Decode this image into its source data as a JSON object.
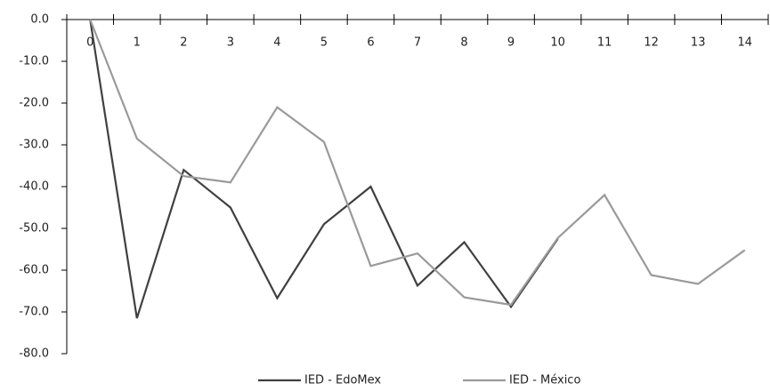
{
  "chart_data": {
    "type": "line",
    "categories": [
      "0",
      "1",
      "2",
      "3",
      "4",
      "5",
      "6",
      "7",
      "8",
      "9",
      "10",
      "11",
      "12",
      "13",
      "14"
    ],
    "series": [
      {
        "name": "IED - EdoMex",
        "color": "#404040",
        "values": [
          0,
          -71.5,
          -36,
          -45,
          -66.7,
          -49,
          -40,
          -63.7,
          -53.3,
          -68.8,
          -52.5,
          null,
          null,
          null,
          null
        ]
      },
      {
        "name": "IED - México",
        "color": "#9a9a9a",
        "values": [
          0,
          -28.5,
          -37.5,
          -39,
          -21,
          -29.3,
          -59,
          -56,
          -66.5,
          -68.3,
          -52.3,
          -42,
          -61.2,
          -63.3,
          -55.2
        ]
      }
    ],
    "ylim": [
      -80,
      0
    ],
    "yticks": [
      {
        "value": 0,
        "label": "0.0"
      },
      {
        "value": -10,
        "label": "-10.0"
      },
      {
        "value": -20,
        "label": "-20.0"
      },
      {
        "value": -30,
        "label": "-30.0"
      },
      {
        "value": -40,
        "label": "-40.0"
      },
      {
        "value": -50,
        "label": "-50.0"
      },
      {
        "value": -60,
        "label": "-60.0"
      },
      {
        "value": -70,
        "label": "-70.0"
      },
      {
        "value": -80,
        "label": "-80.0"
      }
    ],
    "legend": "bottom"
  }
}
